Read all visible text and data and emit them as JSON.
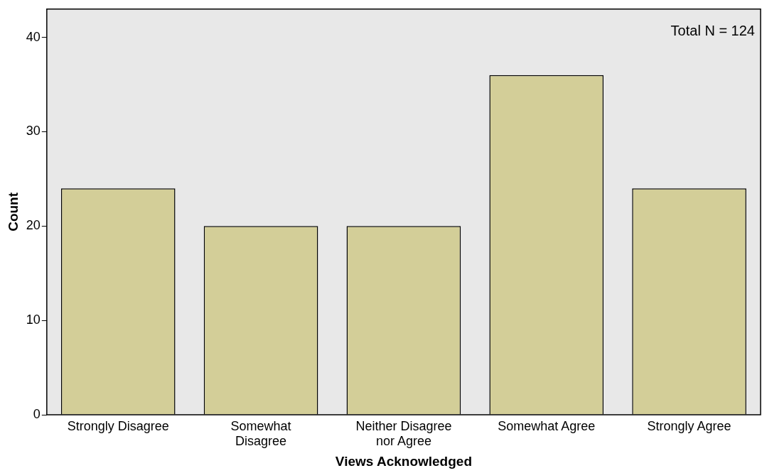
{
  "chart_data": {
    "type": "bar",
    "categories": [
      "Strongly Disagree",
      "Somewhat\nDisagree",
      "Neither Disagree\nnor Agree",
      "Somewhat Agree",
      "Strongly Agree"
    ],
    "values": [
      24,
      20,
      20,
      36,
      24
    ],
    "color": "#d3ce98",
    "xlabel": "Views Acknowledged",
    "ylabel": "Count",
    "ylim": [
      0,
      43
    ],
    "yticks": [
      0,
      10,
      20,
      30,
      40
    ],
    "grid": false,
    "legend": false,
    "annotations": [
      "Total N = 124"
    ]
  }
}
